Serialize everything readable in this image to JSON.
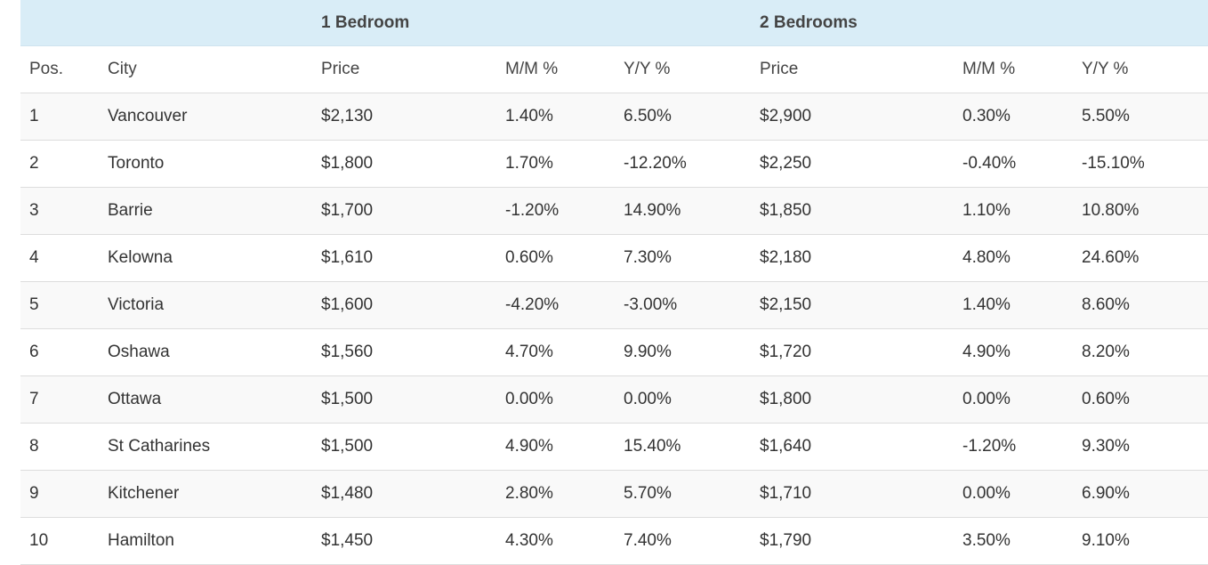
{
  "table": {
    "groups": {
      "one_bedroom": "1 Bedroom",
      "two_bedrooms": "2 Bedrooms"
    },
    "columns": {
      "pos": "Pos.",
      "city": "City",
      "price1": "Price",
      "mm1": "M/M %",
      "yy1": "Y/Y %",
      "price2": "Price",
      "mm2": "M/M %",
      "yy2": "Y/Y %"
    },
    "rows": [
      {
        "pos": "1",
        "city": "Vancouver",
        "price1": "$2,130",
        "mm1": "1.40%",
        "yy1": "6.50%",
        "price2": "$2,900",
        "mm2": "0.30%",
        "yy2": "5.50%"
      },
      {
        "pos": "2",
        "city": "Toronto",
        "price1": "$1,800",
        "mm1": "1.70%",
        "yy1": "-12.20%",
        "price2": "$2,250",
        "mm2": "-0.40%",
        "yy2": "-15.10%"
      },
      {
        "pos": "3",
        "city": "Barrie",
        "price1": "$1,700",
        "mm1": "-1.20%",
        "yy1": "14.90%",
        "price2": "$1,850",
        "mm2": "1.10%",
        "yy2": "10.80%"
      },
      {
        "pos": "4",
        "city": "Kelowna",
        "price1": "$1,610",
        "mm1": "0.60%",
        "yy1": "7.30%",
        "price2": "$2,180",
        "mm2": "4.80%",
        "yy2": "24.60%"
      },
      {
        "pos": "5",
        "city": "Victoria",
        "price1": "$1,600",
        "mm1": "-4.20%",
        "yy1": "-3.00%",
        "price2": "$2,150",
        "mm2": "1.40%",
        "yy2": "8.60%"
      },
      {
        "pos": "6",
        "city": "Oshawa",
        "price1": "$1,560",
        "mm1": "4.70%",
        "yy1": "9.90%",
        "price2": "$1,720",
        "mm2": "4.90%",
        "yy2": "8.20%"
      },
      {
        "pos": "7",
        "city": "Ottawa",
        "price1": "$1,500",
        "mm1": "0.00%",
        "yy1": "0.00%",
        "price2": "$1,800",
        "mm2": "0.00%",
        "yy2": "0.60%"
      },
      {
        "pos": "8",
        "city": "St Catharines",
        "price1": "$1,500",
        "mm1": "4.90%",
        "yy1": "15.40%",
        "price2": "$1,640",
        "mm2": "-1.20%",
        "yy2": "9.30%"
      },
      {
        "pos": "9",
        "city": "Kitchener",
        "price1": "$1,480",
        "mm1": "2.80%",
        "yy1": "5.70%",
        "price2": "$1,710",
        "mm2": "0.00%",
        "yy2": "6.90%"
      },
      {
        "pos": "10",
        "city": "Hamilton",
        "price1": "$1,450",
        "mm1": "4.30%",
        "yy1": "7.40%",
        "price2": "$1,790",
        "mm2": "3.50%",
        "yy2": "9.10%"
      }
    ]
  }
}
